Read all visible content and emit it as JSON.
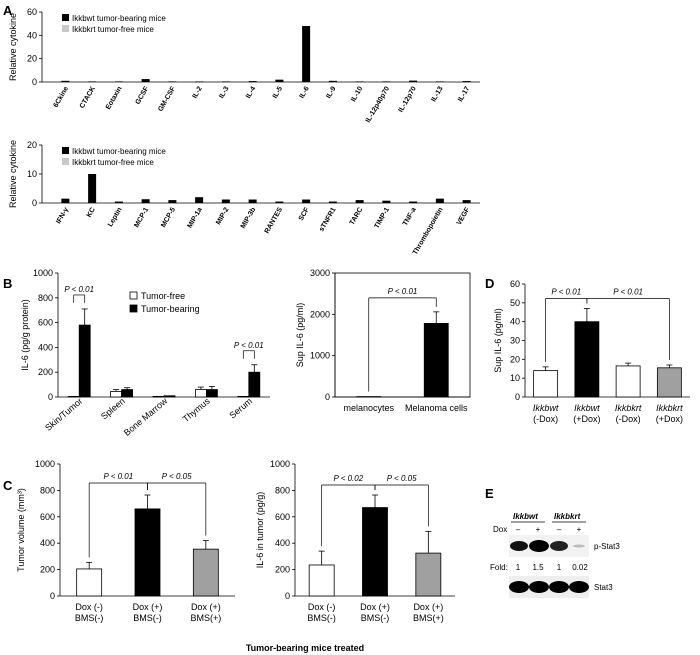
{
  "panels": {
    "A": "A",
    "B": "B",
    "C": "C",
    "D": "D",
    "E": "E"
  },
  "chart_data": [
    {
      "id": "A1",
      "type": "bar",
      "ylabel": "Relative cytokine",
      "ylim": [
        0,
        60
      ],
      "yticks": [
        0,
        20,
        40,
        60
      ],
      "legend": [
        {
          "label": "Ikkbwt tumor-bearing mice",
          "color": "#000000"
        },
        {
          "label": "Ikkbkrt tumor-free mice",
          "color": "#c8c8c8"
        }
      ],
      "categories": [
        "6Ckine",
        "CTACK",
        "Eotaxin",
        "GCSF",
        "GM-CSF",
        "IL-2",
        "IL-3",
        "IL-4",
        "IL-5",
        "IL-6",
        "IL-9",
        "IL-10",
        "IL-12p40p70",
        "IL-12p70",
        "IL-13",
        "IL-17"
      ],
      "values": [
        1,
        0.5,
        0.5,
        2.5,
        0.5,
        0.5,
        0.5,
        0.8,
        2,
        48,
        1,
        0.5,
        0.5,
        1.2,
        0.5,
        0.8
      ]
    },
    {
      "id": "A2",
      "type": "bar",
      "ylabel": "Relative cytokine",
      "ylim": [
        0,
        20
      ],
      "yticks": [
        0,
        10,
        20
      ],
      "legend": [
        {
          "label": "Ikkbwt tumor-bearing mice",
          "color": "#000000"
        },
        {
          "label": "Ikkbkrt tumor-free mice",
          "color": "#c8c8c8"
        }
      ],
      "categories": [
        "IFN-γ",
        "KC",
        "Leptin",
        "MCP-1",
        "MCP-5",
        "MIP-1a",
        "MIP-2",
        "MIP-3b",
        "RANTES",
        "SCF",
        "sTNFR1",
        "TARC",
        "TIMP-1",
        "TNF-a",
        "Thrombopoietin",
        "VEGF"
      ],
      "values": [
        1.5,
        10,
        0.5,
        1.3,
        1,
        2,
        1.2,
        1.2,
        0.5,
        1.2,
        0.5,
        1,
        0.8,
        0.5,
        1.5,
        1
      ]
    },
    {
      "id": "B1",
      "type": "bar",
      "ylabel": "IL-6 (pg/g protein)",
      "ylim": [
        0,
        1000
      ],
      "yticks": [
        0,
        200,
        400,
        600,
        800,
        1000
      ],
      "categories": [
        "Skin/Tumor",
        "Spleen",
        "Bone Marrow",
        "Thymus",
        "Serum"
      ],
      "series": [
        {
          "name": "Tumor-free",
          "fill": "#ffffff",
          "values": [
            5,
            45,
            5,
            60,
            5
          ],
          "errors": [
            0,
            15,
            0,
            20,
            0
          ]
        },
        {
          "name": "Tumor-bearing",
          "fill": "#000000",
          "values": [
            580,
            60,
            10,
            60,
            200
          ],
          "errors": [
            130,
            15,
            0,
            25,
            60
          ]
        }
      ],
      "annotations": [
        {
          "text": "P < 0.01",
          "from": 0,
          "to": 0
        },
        {
          "text": "P < 0.01",
          "from": 4,
          "to": 4
        }
      ]
    },
    {
      "id": "B2",
      "type": "bar",
      "ylabel": "Sup IL-6 (pg/ml)",
      "ylim": [
        0,
        3000
      ],
      "yticks": [
        0,
        1000,
        2000,
        3000
      ],
      "categories": [
        "melanocytes",
        "Melanoma cells"
      ],
      "values": [
        10,
        1780
      ],
      "errors": [
        0,
        280
      ],
      "fills": [
        "#000000",
        "#000000"
      ],
      "annotations": [
        {
          "text": "P < 0.01",
          "from": 0,
          "to": 1
        }
      ]
    },
    {
      "id": "C1",
      "type": "bar",
      "ylabel": "Tumor volume (mm³)",
      "ylim": [
        0,
        1000
      ],
      "yticks": [
        0,
        200,
        400,
        600,
        800,
        1000
      ],
      "categories": [
        [
          "Dox (-)",
          "BMS(-)"
        ],
        [
          "Dox (+)",
          "BMS(-)"
        ],
        [
          "Dox (+)",
          "BMS(+)"
        ]
      ],
      "values": [
        205,
        660,
        355
      ],
      "errors": [
        50,
        105,
        65
      ],
      "fills": [
        "#ffffff",
        "#000000",
        "#a0a0a0"
      ],
      "annotations": [
        {
          "text": "P < 0.01",
          "from": 0,
          "to": 1
        },
        {
          "text": "P < 0.05",
          "from": 1,
          "to": 2
        }
      ]
    },
    {
      "id": "C2",
      "type": "bar",
      "ylabel": "IL-6 in tumor (pg/g)",
      "ylim": [
        0,
        1000
      ],
      "yticks": [
        0,
        200,
        400,
        600,
        800,
        1000
      ],
      "categories": [
        [
          "Dox (-)",
          "BMS(-)"
        ],
        [
          "Dox (+)",
          "BMS(-)"
        ],
        [
          "Dox (+)",
          "BMS(+)"
        ]
      ],
      "values": [
        235,
        670,
        325
      ],
      "errors": [
        105,
        95,
        165
      ],
      "fills": [
        "#ffffff",
        "#000000",
        "#a0a0a0"
      ],
      "annotations": [
        {
          "text": "P < 0.02",
          "from": 0,
          "to": 1
        },
        {
          "text": "P < 0.05",
          "from": 1,
          "to": 2
        }
      ],
      "xlabel": "Tumor-bearing mice treated"
    },
    {
      "id": "D",
      "type": "bar",
      "ylabel": "Sup IL-6 (pg/ml)",
      "ylim": [
        0,
        60
      ],
      "yticks": [
        0,
        10,
        20,
        30,
        40,
        50,
        60
      ],
      "categories": [
        [
          "Ikkbwt",
          "(-Dox)"
        ],
        [
          "Ikkbwt",
          "(+Dox)"
        ],
        [
          "Ikkbkrt",
          "(-Dox)"
        ],
        [
          "Ikkbkrt",
          "(+Dox)"
        ]
      ],
      "values": [
        14,
        40,
        16.5,
        15.5
      ],
      "errors": [
        2,
        7,
        1.5,
        1.5
      ],
      "fills": [
        "#ffffff",
        "#000000",
        "#ffffff",
        "#a0a0a0"
      ],
      "annotations": [
        {
          "text": "P < 0.01",
          "from": 0,
          "to": 1
        },
        {
          "text": "P < 0.01",
          "from": 1,
          "to": 3
        }
      ]
    }
  ],
  "blot": {
    "groups": [
      "Ikkbwt",
      "Ikkbkrt"
    ],
    "dox_label": "Dox",
    "dox": [
      "–",
      "+",
      "–",
      "+"
    ],
    "fold_label": "Fold:",
    "folds": [
      "1",
      "1.5",
      "1",
      "0.02"
    ],
    "row1": "p-Stat3",
    "row2": "Stat3"
  }
}
